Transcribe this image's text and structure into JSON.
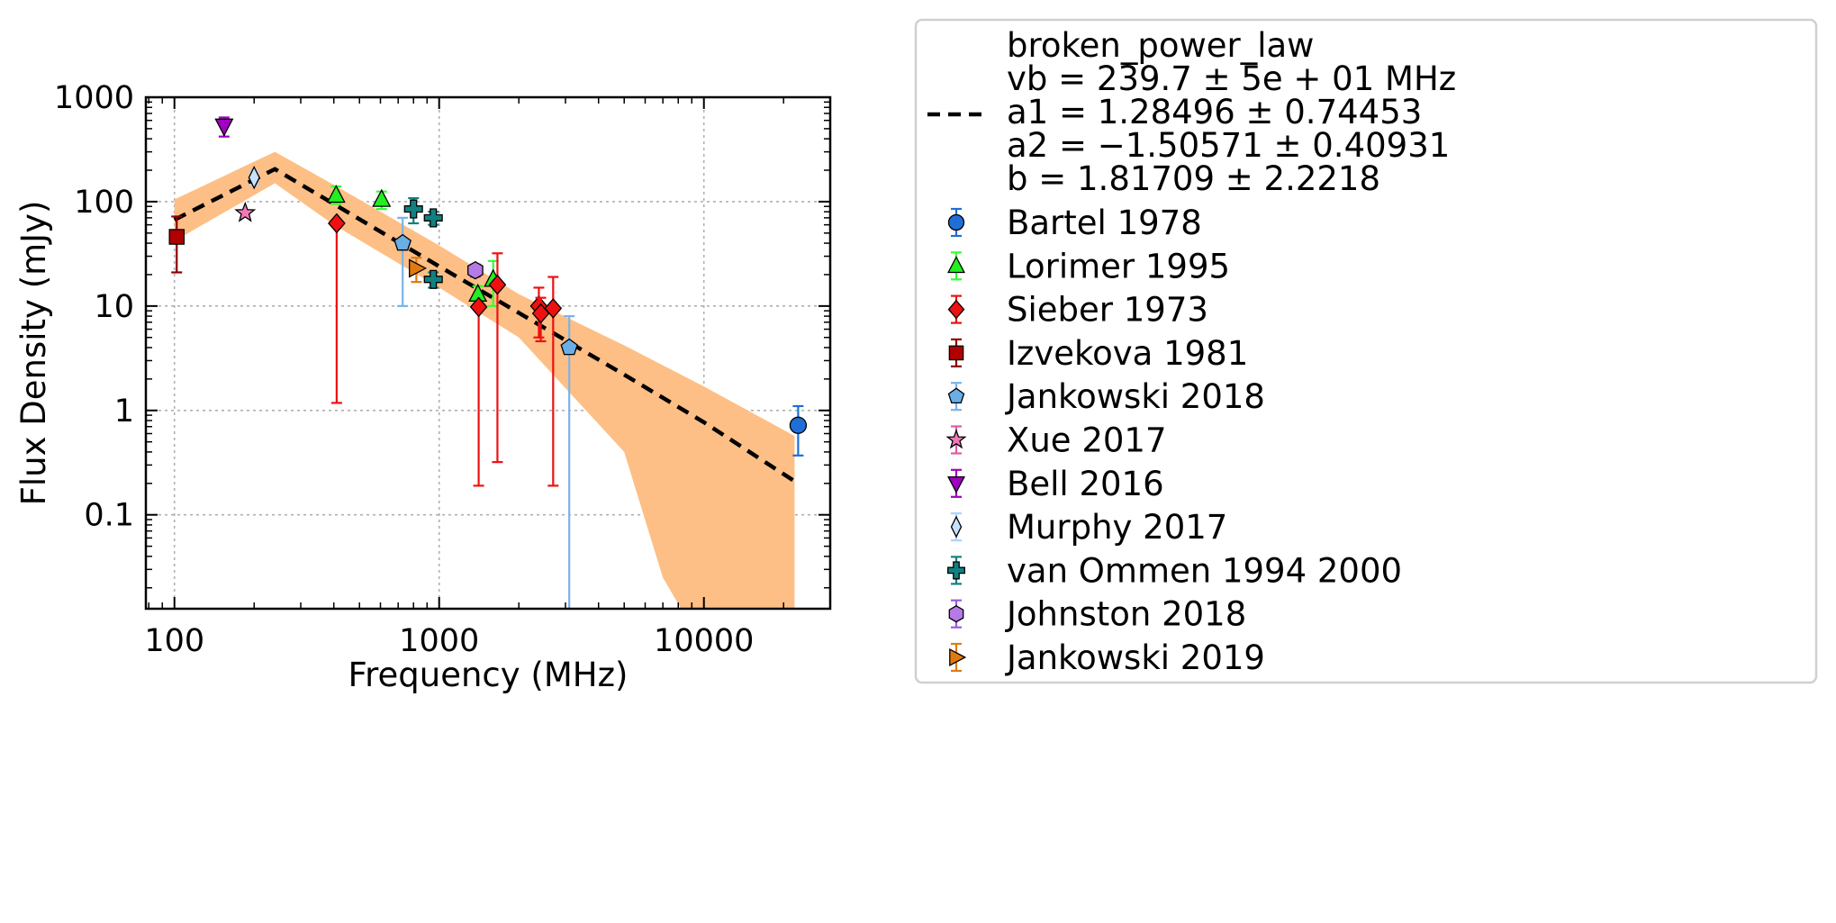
{
  "chart_data": {
    "type": "scatter",
    "xlabel": "Frequency (MHz)",
    "ylabel": "Flux Density (mJy)",
    "xscale": "log",
    "yscale": "log",
    "xlim": [
      78,
      30000
    ],
    "ylim": [
      0.0126,
      1000
    ],
    "grid": true,
    "legend_placement": "outside-right",
    "xticks": [
      {
        "value": 100,
        "label": "100"
      },
      {
        "value": 1000,
        "label": "1000"
      },
      {
        "value": 10000,
        "label": "10000"
      }
    ],
    "yticks": [
      {
        "value": 0.1,
        "label": "0.1"
      },
      {
        "value": 1,
        "label": "1"
      },
      {
        "value": 10,
        "label": "10"
      },
      {
        "value": 100,
        "label": "100"
      },
      {
        "value": 1000,
        "label": "1000"
      }
    ],
    "fit": {
      "model": "broken_power_law",
      "legend_lines": [
        "broken_power_law",
        "vb = 239.7 ± 5e + 01 MHz",
        "a1 = 1.28496 ± 0.74453",
        "a2 = −1.50571 ± 0.40931",
        "b = 1.81709 ± 2.2218"
      ],
      "vb": 239.7,
      "a1": 1.28496,
      "a2": -1.50571,
      "line_points": [
        [
          100,
          67
        ],
        [
          239.7,
          205
        ],
        [
          400,
          95
        ],
        [
          1000,
          24
        ],
        [
          2000,
          8.6
        ],
        [
          5000,
          2.2
        ],
        [
          10000,
          0.77
        ],
        [
          22000,
          0.21
        ]
      ],
      "band_upper": [
        [
          100,
          105
        ],
        [
          239.7,
          300
        ],
        [
          400,
          145
        ],
        [
          1000,
          38
        ],
        [
          2000,
          13
        ],
        [
          5000,
          4.2
        ],
        [
          10000,
          1.7
        ],
        [
          22000,
          0.57
        ]
      ],
      "band_lower": [
        [
          100,
          42
        ],
        [
          239.7,
          150
        ],
        [
          400,
          60
        ],
        [
          1000,
          15
        ],
        [
          2000,
          5
        ],
        [
          5000,
          0.4
        ],
        [
          7000,
          0.025
        ],
        [
          8200,
          0.0126
        ]
      ],
      "line_color": "#000000",
      "band_color": "#fdbf85"
    },
    "series": [
      {
        "name": "Bartel 1978",
        "marker": "circle",
        "color": "#1f6fd6",
        "errcolor": "#1f6fd6",
        "points": [
          {
            "x": 22700,
            "y": 0.72,
            "ylo": 0.37,
            "yhi": 1.1
          }
        ]
      },
      {
        "name": "Lorimer 1995",
        "marker": "triangle-up",
        "color": "#22ee22",
        "errcolor": "#33ff33",
        "points": [
          {
            "x": 408,
            "y": 115,
            "ylo": 95,
            "yhi": 140
          },
          {
            "x": 606,
            "y": 105,
            "ylo": 85,
            "yhi": 125
          },
          {
            "x": 1400,
            "y": 13,
            "ylo": 10.5,
            "yhi": 15.5
          },
          {
            "x": 1600,
            "y": 18,
            "ylo": 10,
            "yhi": 27
          }
        ]
      },
      {
        "name": "Sieber 1973",
        "marker": "diamond",
        "color": "#ee1111",
        "errcolor": "#ee1111",
        "points": [
          {
            "x": 410,
            "y": 62,
            "ylo": 1.18,
            "yhi": 62
          },
          {
            "x": 1410,
            "y": 9.8,
            "ylo": 0.19,
            "yhi": 9.8
          },
          {
            "x": 1660,
            "y": 16,
            "ylo": 0.32,
            "yhi": 32
          },
          {
            "x": 2380,
            "y": 10,
            "ylo": 5,
            "yhi": 15
          },
          {
            "x": 2420,
            "y": 8.5,
            "ylo": 4.6,
            "yhi": 12
          },
          {
            "x": 2695,
            "y": 9.5,
            "ylo": 0.19,
            "yhi": 19
          }
        ]
      },
      {
        "name": "Izvekova 1981",
        "marker": "square",
        "color": "#b00000",
        "errcolor": "#8b0000",
        "points": [
          {
            "x": 102,
            "y": 46,
            "ylo": 21,
            "yhi": 72
          }
        ]
      },
      {
        "name": "Jankowski 2018",
        "marker": "pentagon",
        "color": "#6aaee6",
        "errcolor": "#7ab3e8",
        "points": [
          {
            "x": 728,
            "y": 40,
            "ylo": 10,
            "yhi": 70
          },
          {
            "x": 3100,
            "y": 4,
            "ylo": 0.0126,
            "yhi": 8
          }
        ]
      },
      {
        "name": "Xue 2017",
        "marker": "star",
        "color": "#f07ab8",
        "errcolor": "#e05aa8",
        "points": [
          {
            "x": 185,
            "y": 78,
            "ylo": 78,
            "yhi": 78
          }
        ]
      },
      {
        "name": "Bell 2016",
        "marker": "triangle-down",
        "color": "#a000c0",
        "errcolor": "#a000c0",
        "points": [
          {
            "x": 154,
            "y": 530,
            "ylo": 420,
            "yhi": 640
          }
        ]
      },
      {
        "name": "Murphy 2017",
        "marker": "thin-diamond",
        "color": "#c6e2ff",
        "errcolor": "#aad4ff",
        "points": [
          {
            "x": 200,
            "y": 170,
            "ylo": 145,
            "yhi": 195
          }
        ]
      },
      {
        "name": "van Ommen 1994 2000",
        "marker": "plus",
        "color": "#128080",
        "errcolor": "#128080",
        "points": [
          {
            "x": 800,
            "y": 85,
            "ylo": 62,
            "yhi": 108
          },
          {
            "x": 950,
            "y": 70,
            "ylo": 60,
            "yhi": 80
          },
          {
            "x": 950,
            "y": 18,
            "ylo": 15,
            "yhi": 21
          }
        ]
      },
      {
        "name": "Johnston 2018",
        "marker": "hexagon",
        "color": "#b57ae6",
        "errcolor": "#9a5ae0",
        "points": [
          {
            "x": 1370,
            "y": 22,
            "ylo": 19,
            "yhi": 25
          }
        ]
      },
      {
        "name": "Jankowski 2019",
        "marker": "triangle-right",
        "color": "#e07a10",
        "errcolor": "#e07a10",
        "points": [
          {
            "x": 820,
            "y": 23,
            "ylo": 17,
            "yhi": 29
          }
        ]
      }
    ]
  }
}
